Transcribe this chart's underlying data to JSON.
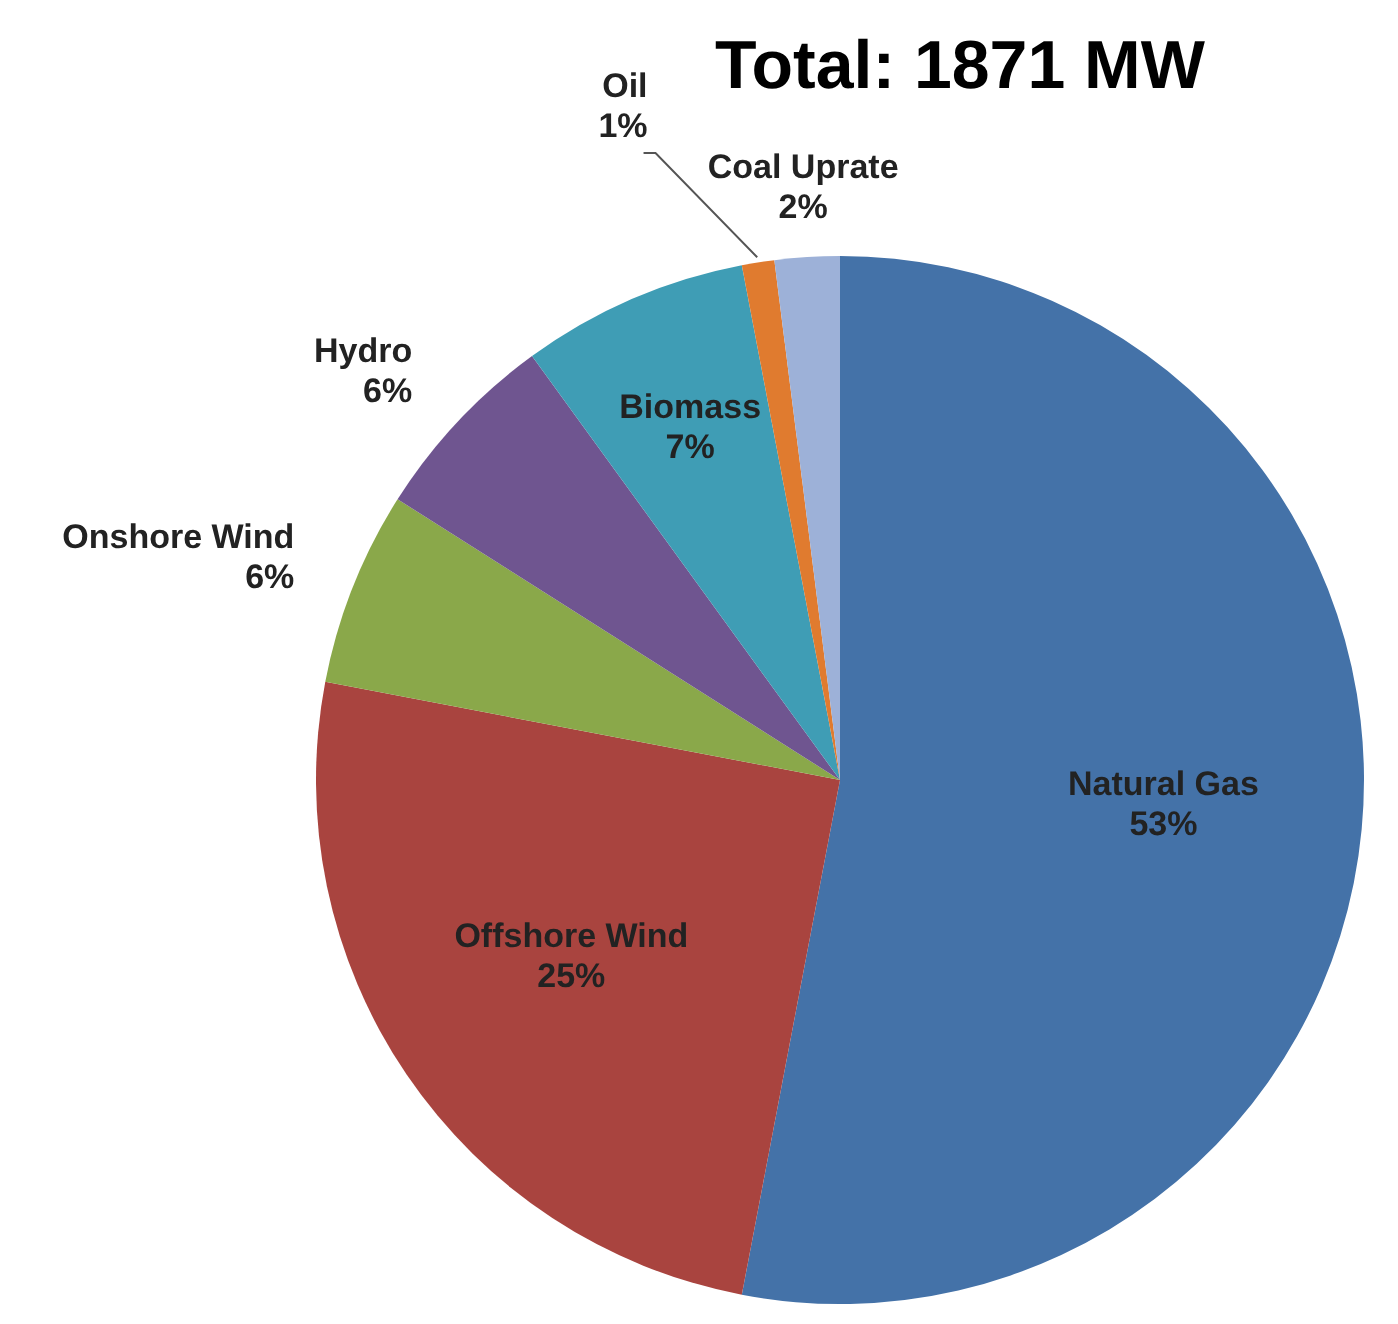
{
  "chart_data": {
    "type": "pie",
    "title": "Total: 1871 MW",
    "categories": [
      "Natural Gas",
      "Offshore Wind",
      "Onshore Wind",
      "Hydro",
      "Biomass",
      "Oil",
      "Coal Uprate"
    ],
    "values": [
      53,
      25,
      6,
      6,
      7,
      1,
      2
    ],
    "value_labels": [
      "53%",
      "25%",
      "6%",
      "6%",
      "7%",
      "1%",
      "2%"
    ],
    "colors": [
      "#4472a8",
      "#a9443f",
      "#8aa84a",
      "#6f5590",
      "#3f9db5",
      "#e07b2f",
      "#9db1d8"
    ]
  }
}
